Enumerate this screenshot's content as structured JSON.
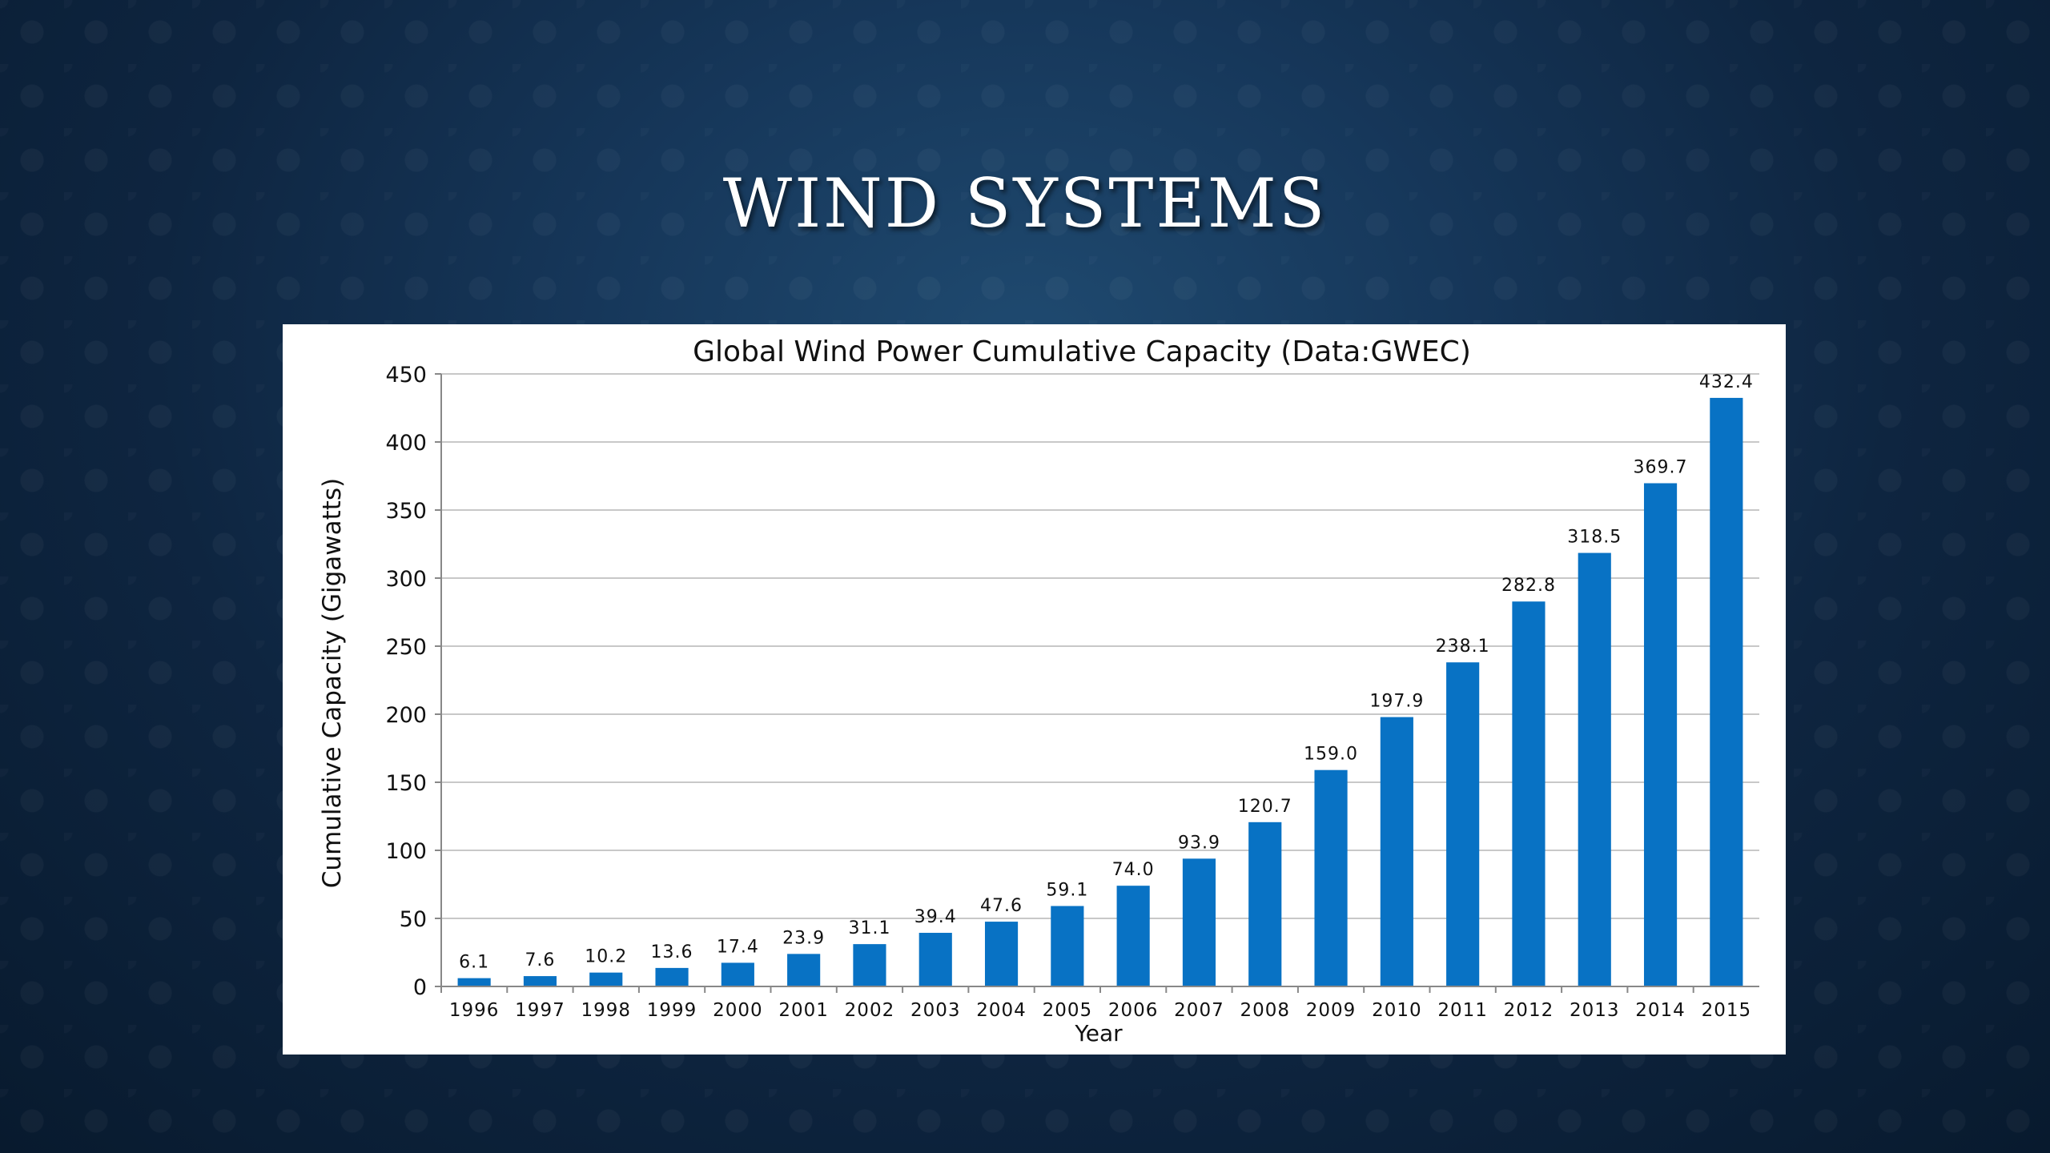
{
  "slide": {
    "title": "WIND SYSTEMS"
  },
  "chart_data": {
    "type": "bar",
    "title": "Global Wind Power Cumulative Capacity (Data:GWEC)",
    "xlabel": "Year",
    "ylabel": "Cumulative Capacity (Gigawatts)",
    "ylim": [
      0,
      450
    ],
    "yticks": [
      0,
      50,
      100,
      150,
      200,
      250,
      300,
      350,
      400,
      450
    ],
    "grid": true,
    "bar_color": "#0872c4",
    "categories": [
      "1996",
      "1997",
      "1998",
      "1999",
      "2000",
      "2001",
      "2002",
      "2003",
      "2004",
      "2005",
      "2006",
      "2007",
      "2008",
      "2009",
      "2010",
      "2011",
      "2012",
      "2013",
      "2014",
      "2015"
    ],
    "values": [
      6.1,
      7.6,
      10.2,
      13.6,
      17.4,
      23.9,
      31.1,
      39.4,
      47.6,
      59.1,
      74.0,
      93.9,
      120.7,
      159.0,
      197.9,
      238.1,
      282.8,
      318.5,
      369.7,
      432.4
    ],
    "value_labels": [
      "6.1",
      "7.6",
      "10.2",
      "13.6",
      "17.4",
      "23.9",
      "31.1",
      "39.4",
      "47.6",
      "59.1",
      "74.0",
      "93.9",
      "120.7",
      "159.0",
      "197.9",
      "238.1",
      "282.8",
      "318.5",
      "369.7",
      "432.4"
    ]
  }
}
